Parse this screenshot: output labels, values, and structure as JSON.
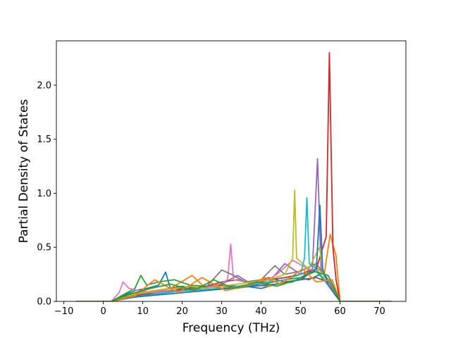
{
  "chart_data": {
    "type": "line",
    "title": "",
    "xlabel": "Frequency (THz)",
    "ylabel": "Partial Density of States",
    "xlim": [
      -11.9,
      76.7
    ],
    "ylim": [
      0,
      2.41
    ],
    "xticks": [
      -10,
      0,
      10,
      20,
      30,
      40,
      50,
      60,
      70
    ],
    "yticks": [
      0.0,
      0.5,
      1.0,
      1.5,
      2.0
    ],
    "xtick_labels": [
      "−10",
      "0",
      "10",
      "20",
      "30",
      "40",
      "50",
      "60",
      "70"
    ],
    "ytick_labels": [
      "0.0",
      "0.5",
      "1.0",
      "1.5",
      "2.0"
    ],
    "grid": false,
    "legend": "none",
    "series": [
      {
        "color": "#1f77b4",
        "x": [
          -7,
          2,
          5,
          8,
          11,
          14,
          15.8,
          17,
          20,
          24,
          28,
          32,
          36,
          40,
          44,
          48,
          50,
          52,
          55,
          58,
          60,
          73
        ],
        "y": [
          0,
          0,
          0.05,
          0.1,
          0.12,
          0.15,
          0.27,
          0.12,
          0.14,
          0.12,
          0.15,
          0.13,
          0.14,
          0.12,
          0.16,
          0.18,
          0.22,
          0.2,
          0.25,
          0.1,
          0,
          0
        ]
      },
      {
        "color": "#ff7f0e",
        "x": [
          -7,
          2,
          5,
          9,
          13,
          17,
          22.5,
          26,
          30,
          34,
          38,
          42,
          46,
          50,
          53,
          56,
          57.5,
          59,
          60,
          73
        ],
        "y": [
          0,
          0,
          0.04,
          0.08,
          0.1,
          0.12,
          0.24,
          0.12,
          0.14,
          0.12,
          0.15,
          0.14,
          0.18,
          0.2,
          0.35,
          0.25,
          0.62,
          0.42,
          0,
          0
        ]
      },
      {
        "color": "#2ca02c",
        "x": [
          -7,
          2,
          5,
          8,
          9.5,
          11,
          14,
          18,
          22,
          26,
          30,
          34,
          38,
          42,
          46,
          50,
          54,
          57,
          60,
          73
        ],
        "y": [
          0,
          0,
          0.06,
          0.12,
          0.24,
          0.15,
          0.18,
          0.2,
          0.15,
          0.14,
          0.12,
          0.13,
          0.15,
          0.17,
          0.2,
          0.22,
          0.28,
          0.15,
          0,
          0
        ]
      },
      {
        "color": "#d62728",
        "x": [
          -7,
          2,
          6,
          10,
          14,
          18,
          22,
          26,
          30,
          34,
          38,
          42,
          46,
          50,
          54,
          56.5,
          57.3,
          58.2,
          59,
          60,
          73
        ],
        "y": [
          0,
          0,
          0.05,
          0.08,
          0.1,
          0.12,
          0.11,
          0.13,
          0.15,
          0.14,
          0.16,
          0.2,
          0.22,
          0.25,
          0.3,
          0.6,
          2.3,
          0.5,
          0.2,
          0,
          0
        ]
      },
      {
        "color": "#9467bd",
        "x": [
          -7,
          2,
          6,
          10,
          14,
          18,
          22,
          26,
          30,
          34,
          38,
          42,
          46,
          50,
          53,
          54.3,
          55.2,
          57,
          60,
          73
        ],
        "y": [
          0,
          0,
          0.04,
          0.07,
          0.09,
          0.1,
          0.12,
          0.14,
          0.16,
          0.24,
          0.15,
          0.18,
          0.35,
          0.25,
          0.3,
          1.32,
          0.3,
          0.2,
          0,
          0
        ]
      },
      {
        "color": "#8c564b",
        "x": [
          -7,
          2,
          6,
          10,
          14,
          18,
          22,
          26,
          30,
          34,
          38,
          42,
          46,
          50,
          54,
          57,
          60,
          73
        ],
        "y": [
          0,
          0,
          0.04,
          0.06,
          0.08,
          0.1,
          0.12,
          0.14,
          0.18,
          0.2,
          0.16,
          0.22,
          0.18,
          0.2,
          0.22,
          0.18,
          0,
          0
        ]
      },
      {
        "color": "#e377c2",
        "x": [
          -7,
          2,
          4,
          5,
          6.5,
          9,
          13,
          17,
          21,
          25,
          29,
          31.5,
          32.3,
          33,
          36,
          40,
          44,
          48,
          52,
          56,
          60,
          73
        ],
        "y": [
          0,
          0,
          0.08,
          0.18,
          0.12,
          0.1,
          0.08,
          0.09,
          0.1,
          0.12,
          0.15,
          0.2,
          0.53,
          0.2,
          0.18,
          0.16,
          0.25,
          0.38,
          0.3,
          0.25,
          0,
          0
        ]
      },
      {
        "color": "#7f7f7f",
        "x": [
          -7,
          2,
          6,
          10,
          14,
          18,
          22,
          26,
          30,
          32.5,
          36,
          40,
          43.5,
          46,
          50,
          54,
          57,
          60,
          73
        ],
        "y": [
          0,
          0,
          0.03,
          0.05,
          0.07,
          0.09,
          0.11,
          0.13,
          0.29,
          0.25,
          0.18,
          0.2,
          0.33,
          0.25,
          0.28,
          0.35,
          0.2,
          0,
          0
        ]
      },
      {
        "color": "#bcbd22",
        "x": [
          -7,
          2,
          6,
          10,
          14,
          18,
          22,
          26,
          30,
          34,
          38,
          42,
          46,
          48,
          48.5,
          49,
          52,
          54.8,
          56,
          60,
          73
        ],
        "y": [
          0,
          0,
          0.05,
          0.08,
          0.1,
          0.12,
          0.14,
          0.12,
          0.14,
          0.16,
          0.18,
          0.2,
          0.25,
          0.4,
          1.03,
          0.4,
          0.3,
          0.5,
          0.2,
          0,
          0
        ]
      },
      {
        "color": "#17becf",
        "x": [
          -7,
          2,
          6,
          10,
          14,
          18,
          22,
          26,
          30,
          34,
          38,
          42,
          46,
          50,
          51,
          51.6,
          52.2,
          54,
          56,
          60,
          73
        ],
        "y": [
          0,
          0,
          0.03,
          0.05,
          0.07,
          0.09,
          0.1,
          0.11,
          0.12,
          0.14,
          0.16,
          0.18,
          0.2,
          0.25,
          0.4,
          0.96,
          0.35,
          0.3,
          0.2,
          0,
          0
        ]
      },
      {
        "color": "#1f77b4",
        "x": [
          -7,
          2,
          8,
          14,
          20,
          26,
          32,
          38,
          44,
          50,
          54,
          54.9,
          55.6,
          57,
          60,
          73
        ],
        "y": [
          0,
          0,
          0.04,
          0.06,
          0.08,
          0.1,
          0.12,
          0.14,
          0.16,
          0.2,
          0.3,
          0.89,
          0.3,
          0.15,
          0,
          0
        ]
      },
      {
        "color": "#ff7f0e",
        "x": [
          -7,
          2,
          8,
          13,
          19,
          25,
          31,
          37,
          41,
          45,
          50.5,
          54,
          58,
          60,
          73
        ],
        "y": [
          0,
          0,
          0.05,
          0.2,
          0.08,
          0.22,
          0.1,
          0.15,
          0.22,
          0.16,
          0.3,
          0.18,
          0.2,
          0,
          0
        ]
      },
      {
        "color": "#2ca02c",
        "x": [
          -7,
          2,
          7,
          12,
          17,
          23,
          28,
          33,
          39,
          44,
          49,
          53,
          57,
          60,
          73
        ],
        "y": [
          0,
          0,
          0.07,
          0.12,
          0.16,
          0.1,
          0.2,
          0.12,
          0.18,
          0.14,
          0.2,
          0.28,
          0.24,
          0,
          0
        ]
      }
    ]
  }
}
